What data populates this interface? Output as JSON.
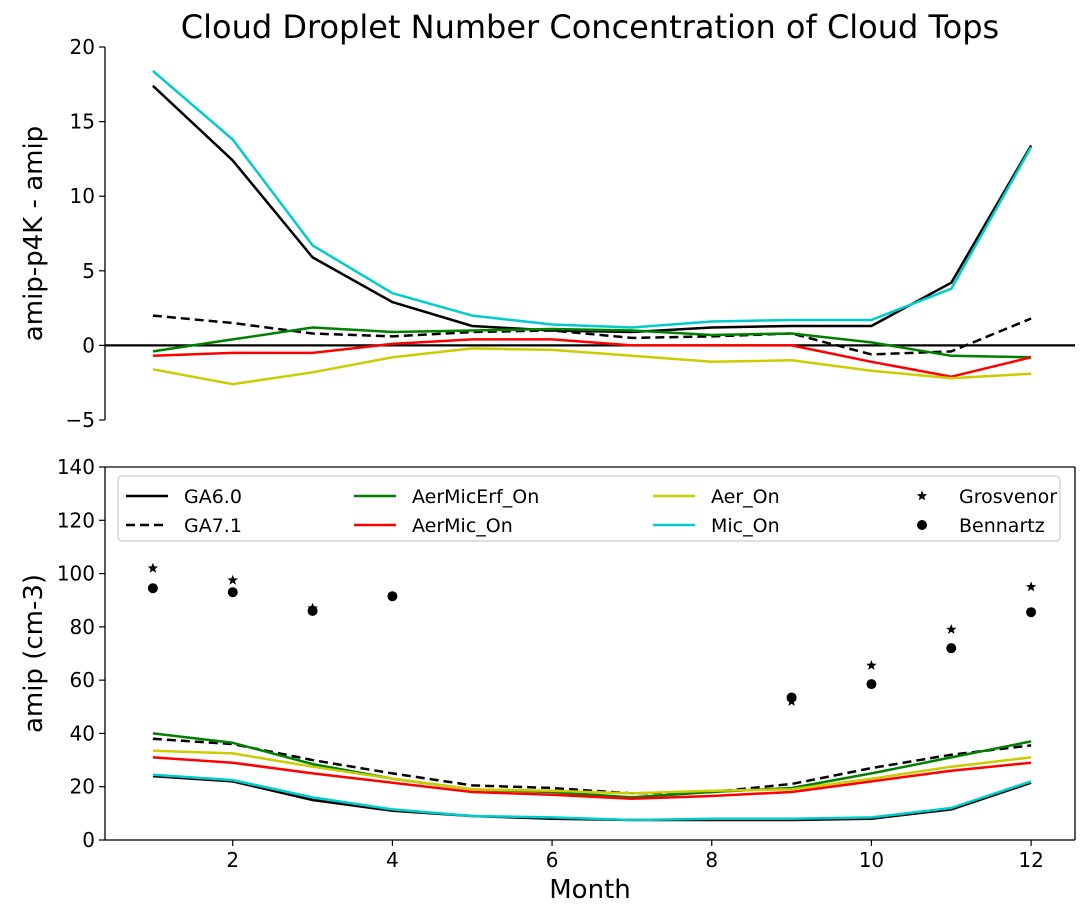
{
  "title": "Cloud Droplet Number Concentration of Cloud Tops",
  "chart_data": [
    {
      "type": "line",
      "ylabel": "amip-p4K - amip",
      "xlabel": "",
      "xlim": [
        0.4,
        12.55
      ],
      "ylim": [
        -5,
        20
      ],
      "yticks": [
        -5,
        0,
        5,
        10,
        15,
        20
      ],
      "xticks": [],
      "zero_line": true,
      "x": [
        1,
        2,
        3,
        4,
        5,
        6,
        7,
        8,
        9,
        10,
        11,
        12
      ],
      "series": [
        {
          "name": "GA6.0",
          "color": "#000000",
          "dash": "solid",
          "values": [
            17.4,
            12.4,
            5.9,
            2.9,
            1.3,
            1.0,
            0.9,
            1.2,
            1.3,
            1.3,
            4.2,
            13.4
          ]
        },
        {
          "name": "GA7.1",
          "color": "#000000",
          "dash": "dashed",
          "values": [
            2.0,
            1.5,
            0.8,
            0.6,
            0.9,
            1.0,
            0.5,
            0.6,
            0.8,
            -0.6,
            -0.4,
            1.8
          ]
        },
        {
          "name": "AerMicErf_On",
          "color": "#008000",
          "dash": "solid",
          "values": [
            -0.4,
            0.4,
            1.2,
            0.9,
            1.0,
            1.1,
            1.0,
            0.7,
            0.8,
            0.2,
            -0.7,
            -0.8
          ]
        },
        {
          "name": "AerMic_On",
          "color": "#ff0000",
          "dash": "solid",
          "values": [
            -0.7,
            -0.5,
            -0.5,
            0.1,
            0.4,
            0.4,
            0.0,
            0.0,
            0.0,
            -1.1,
            -2.1,
            -0.8
          ]
        },
        {
          "name": "Aer_On",
          "color": "#cccc00",
          "dash": "solid",
          "values": [
            -1.6,
            -2.6,
            -1.8,
            -0.8,
            -0.2,
            -0.3,
            -0.7,
            -1.1,
            -1.0,
            -1.7,
            -2.2,
            -1.9
          ]
        },
        {
          "name": "Mic_On",
          "color": "#00cccc",
          "dash": "solid",
          "values": [
            18.4,
            13.8,
            6.7,
            3.5,
            2.0,
            1.4,
            1.2,
            1.6,
            1.7,
            1.7,
            3.8,
            13.3
          ]
        }
      ]
    },
    {
      "type": "line",
      "ylabel": "amip (cm-3)",
      "xlabel": "Month",
      "xlim": [
        0.4,
        12.55
      ],
      "ylim": [
        0,
        140
      ],
      "yticks": [
        0,
        20,
        40,
        60,
        80,
        100,
        120,
        140
      ],
      "xticks": [
        2,
        4,
        6,
        8,
        10,
        12
      ],
      "x": [
        1,
        2,
        3,
        4,
        5,
        6,
        7,
        8,
        9,
        10,
        11,
        12
      ],
      "series": [
        {
          "name": "GA6.0",
          "color": "#000000",
          "dash": "solid",
          "values": [
            24,
            22,
            15,
            11,
            9,
            8,
            7.5,
            7.5,
            7.5,
            8,
            11.5,
            21.5
          ]
        },
        {
          "name": "GA7.1",
          "color": "#000000",
          "dash": "dashed",
          "values": [
            38,
            36,
            30,
            25,
            20.5,
            19.5,
            17.5,
            18,
            21,
            27,
            32,
            35.5
          ]
        },
        {
          "name": "AerMicErf_On",
          "color": "#008000",
          "dash": "solid",
          "values": [
            40,
            36.5,
            28.5,
            23,
            19,
            18,
            16,
            18,
            19.5,
            25,
            31,
            37
          ]
        },
        {
          "name": "AerMic_On",
          "color": "#ff0000",
          "dash": "solid",
          "values": [
            31,
            29,
            25,
            21.5,
            18,
            17,
            15.5,
            16.5,
            18,
            22,
            26,
            29
          ]
        },
        {
          "name": "Aer_On",
          "color": "#cccc00",
          "dash": "solid",
          "values": [
            33.5,
            32.5,
            27.5,
            23,
            19,
            18.5,
            17.5,
            18.5,
            19,
            23,
            27.5,
            31
          ]
        },
        {
          "name": "Mic_On",
          "color": "#00cccc",
          "dash": "solid",
          "values": [
            24.5,
            22.5,
            16,
            11.5,
            9,
            8.5,
            7.5,
            8,
            8,
            8.5,
            12,
            22
          ]
        }
      ],
      "markers": [
        {
          "name": "Grosvenor",
          "symbol": "star",
          "color": "#000000",
          "points": [
            [
              1,
              102
            ],
            [
              2,
              97.5
            ],
            [
              3,
              87
            ],
            [
              9,
              52
            ],
            [
              10,
              65.5
            ],
            [
              11,
              79
            ],
            [
              12,
              95
            ]
          ]
        },
        {
          "name": "Bennartz",
          "symbol": "circle",
          "color": "#000000",
          "points": [
            [
              1,
              94.5
            ],
            [
              2,
              93
            ],
            [
              3,
              86
            ],
            [
              4,
              91.5
            ],
            [
              9,
              53.5
            ],
            [
              10,
              58.5
            ],
            [
              11,
              72
            ],
            [
              12,
              85.5
            ]
          ]
        }
      ],
      "legend": {
        "placement": "top",
        "columns": 4,
        "entries": [
          "GA6.0",
          "GA7.1",
          "AerMicErf_On",
          "AerMic_On",
          "Aer_On",
          "Mic_On",
          "Grosvenor",
          "Bennartz"
        ]
      }
    }
  ]
}
